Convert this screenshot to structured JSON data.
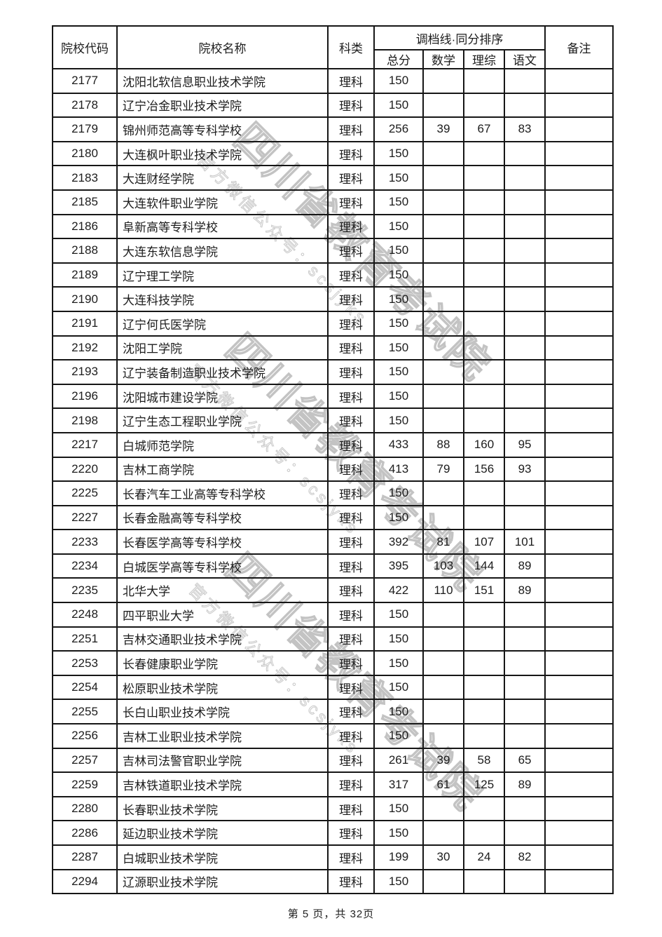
{
  "page": {
    "footer": "第 5 页，共 32页"
  },
  "watermark": {
    "line1": "四川省教育考试院",
    "line2": "官方微信公众号：scsjyks",
    "color": "#c3c3c3"
  },
  "table": {
    "header": {
      "code": "院校代码",
      "name": "院校名称",
      "category": "科类",
      "score_group": "调档线·同分排序",
      "total": "总分",
      "math": "数学",
      "science": "理综",
      "chinese": "语文",
      "remark": "备注"
    },
    "rows": [
      {
        "code": "2177",
        "name": "沈阳北软信息职业技术学院",
        "category": "理科",
        "total": "150",
        "math": "",
        "science": "",
        "chinese": "",
        "remark": ""
      },
      {
        "code": "2178",
        "name": "辽宁冶金职业技术学院",
        "category": "理科",
        "total": "150",
        "math": "",
        "science": "",
        "chinese": "",
        "remark": ""
      },
      {
        "code": "2179",
        "name": "锦州师范高等专科学校",
        "category": "理科",
        "total": "256",
        "math": "39",
        "science": "67",
        "chinese": "83",
        "remark": ""
      },
      {
        "code": "2180",
        "name": "大连枫叶职业技术学院",
        "category": "理科",
        "total": "150",
        "math": "",
        "science": "",
        "chinese": "",
        "remark": ""
      },
      {
        "code": "2183",
        "name": "大连财经学院",
        "category": "理科",
        "total": "150",
        "math": "",
        "science": "",
        "chinese": "",
        "remark": ""
      },
      {
        "code": "2185",
        "name": "大连软件职业学院",
        "category": "理科",
        "total": "150",
        "math": "",
        "science": "",
        "chinese": "",
        "remark": ""
      },
      {
        "code": "2186",
        "name": "阜新高等专科学校",
        "category": "理科",
        "total": "150",
        "math": "",
        "science": "",
        "chinese": "",
        "remark": ""
      },
      {
        "code": "2188",
        "name": "大连东软信息学院",
        "category": "理科",
        "total": "150",
        "math": "",
        "science": "",
        "chinese": "",
        "remark": ""
      },
      {
        "code": "2189",
        "name": "辽宁理工学院",
        "category": "理科",
        "total": "150",
        "math": "",
        "science": "",
        "chinese": "",
        "remark": ""
      },
      {
        "code": "2190",
        "name": "大连科技学院",
        "category": "理科",
        "total": "150",
        "math": "",
        "science": "",
        "chinese": "",
        "remark": ""
      },
      {
        "code": "2191",
        "name": "辽宁何氏医学院",
        "category": "理科",
        "total": "150",
        "math": "",
        "science": "",
        "chinese": "",
        "remark": ""
      },
      {
        "code": "2192",
        "name": "沈阳工学院",
        "category": "理科",
        "total": "150",
        "math": "",
        "science": "",
        "chinese": "",
        "remark": ""
      },
      {
        "code": "2193",
        "name": "辽宁装备制造职业技术学院",
        "category": "理科",
        "total": "150",
        "math": "",
        "science": "",
        "chinese": "",
        "remark": ""
      },
      {
        "code": "2196",
        "name": "沈阳城市建设学院",
        "category": "理科",
        "total": "150",
        "math": "",
        "science": "",
        "chinese": "",
        "remark": ""
      },
      {
        "code": "2198",
        "name": "辽宁生态工程职业学院",
        "category": "理科",
        "total": "150",
        "math": "",
        "science": "",
        "chinese": "",
        "remark": ""
      },
      {
        "code": "2217",
        "name": "白城师范学院",
        "category": "理科",
        "total": "433",
        "math": "88",
        "science": "160",
        "chinese": "95",
        "remark": ""
      },
      {
        "code": "2220",
        "name": "吉林工商学院",
        "category": "理科",
        "total": "413",
        "math": "79",
        "science": "156",
        "chinese": "93",
        "remark": ""
      },
      {
        "code": "2225",
        "name": "长春汽车工业高等专科学校",
        "category": "理科",
        "total": "150",
        "math": "",
        "science": "",
        "chinese": "",
        "remark": ""
      },
      {
        "code": "2227",
        "name": "长春金融高等专科学校",
        "category": "理科",
        "total": "150",
        "math": "",
        "science": "",
        "chinese": "",
        "remark": ""
      },
      {
        "code": "2233",
        "name": "长春医学高等专科学校",
        "category": "理科",
        "total": "392",
        "math": "81",
        "science": "107",
        "chinese": "101",
        "remark": ""
      },
      {
        "code": "2234",
        "name": "白城医学高等专科学校",
        "category": "理科",
        "total": "395",
        "math": "103",
        "science": "144",
        "chinese": "89",
        "remark": ""
      },
      {
        "code": "2235",
        "name": "北华大学",
        "category": "理科",
        "total": "422",
        "math": "110",
        "science": "151",
        "chinese": "89",
        "remark": ""
      },
      {
        "code": "2248",
        "name": "四平职业大学",
        "category": "理科",
        "total": "150",
        "math": "",
        "science": "",
        "chinese": "",
        "remark": ""
      },
      {
        "code": "2251",
        "name": "吉林交通职业技术学院",
        "category": "理科",
        "total": "150",
        "math": "",
        "science": "",
        "chinese": "",
        "remark": ""
      },
      {
        "code": "2253",
        "name": "长春健康职业学院",
        "category": "理科",
        "total": "150",
        "math": "",
        "science": "",
        "chinese": "",
        "remark": ""
      },
      {
        "code": "2254",
        "name": "松原职业技术学院",
        "category": "理科",
        "total": "150",
        "math": "",
        "science": "",
        "chinese": "",
        "remark": ""
      },
      {
        "code": "2255",
        "name": "长白山职业技术学院",
        "category": "理科",
        "total": "150",
        "math": "",
        "science": "",
        "chinese": "",
        "remark": ""
      },
      {
        "code": "2256",
        "name": "吉林工业职业技术学院",
        "category": "理科",
        "total": "150",
        "math": "",
        "science": "",
        "chinese": "",
        "remark": ""
      },
      {
        "code": "2257",
        "name": "吉林司法警官职业学院",
        "category": "理科",
        "total": "261",
        "math": "39",
        "science": "58",
        "chinese": "65",
        "remark": ""
      },
      {
        "code": "2259",
        "name": "吉林铁道职业技术学院",
        "category": "理科",
        "total": "317",
        "math": "61",
        "science": "125",
        "chinese": "89",
        "remark": ""
      },
      {
        "code": "2280",
        "name": "长春职业技术学院",
        "category": "理科",
        "total": "150",
        "math": "",
        "science": "",
        "chinese": "",
        "remark": ""
      },
      {
        "code": "2286",
        "name": "延边职业技术学院",
        "category": "理科",
        "total": "150",
        "math": "",
        "science": "",
        "chinese": "",
        "remark": ""
      },
      {
        "code": "2287",
        "name": "白城职业技术学院",
        "category": "理科",
        "total": "199",
        "math": "30",
        "science": "24",
        "chinese": "82",
        "remark": ""
      },
      {
        "code": "2294",
        "name": "辽源职业技术学院",
        "category": "理科",
        "total": "150",
        "math": "",
        "science": "",
        "chinese": "",
        "remark": ""
      }
    ]
  }
}
